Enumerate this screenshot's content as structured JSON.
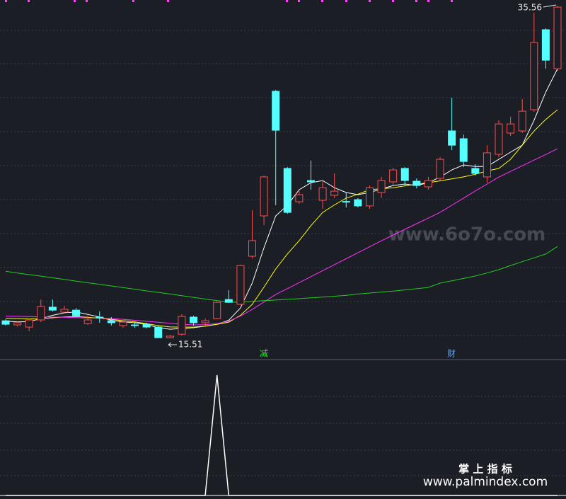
{
  "chart_data": [
    {
      "type": "candlestick",
      "ylim": [
        14.36,
        35.9
      ],
      "up_color": "#ff4d4d",
      "down_color": "#54ffff",
      "open": [
        16.57,
        16.32,
        16.19,
        16.62,
        17.39,
        17.09,
        17.21,
        16.4,
        16.79,
        16.57,
        16.28,
        16.32,
        16.36,
        16.19,
        15.55,
        15.76,
        16.79,
        16.45,
        16.7,
        17.85,
        17.56,
        20.46,
        22.89,
        30.4,
        25.75,
        23.74,
        25.02,
        23.83,
        24.13,
        23.76,
        23.87,
        23.49,
        24.3,
        24.94,
        25.75,
        24.98,
        24.64,
        25.15,
        28.01,
        27.54,
        25.75,
        25.24,
        26.6,
        27.88,
        28.01,
        29.29,
        34.11,
        31.76
      ],
      "high": [
        16.66,
        16.53,
        16.7,
        17.85,
        17.85,
        17.47,
        17.34,
        16.87,
        17.13,
        16.79,
        16.62,
        16.49,
        16.45,
        16.28,
        15.72,
        16.96,
        16.87,
        16.7,
        17.72,
        18.41,
        19.95,
        23.23,
        25.32,
        30.48,
        25.83,
        24.38,
        26.22,
        25.02,
        25.45,
        24.3,
        23.96,
        24.72,
        25.24,
        25.79,
        25.83,
        25.15,
        25.24,
        26.43,
        30.01,
        27.79,
        26.0,
        27.15,
        28.65,
        28.86,
        29.93,
        35.13,
        34.19,
        35.56
      ],
      "low": [
        16.28,
        16.23,
        15.94,
        16.49,
        17.13,
        17.0,
        16.79,
        16.32,
        16.45,
        16.28,
        16.15,
        16.15,
        16.11,
        15.55,
        15.51,
        15.68,
        16.28,
        16.28,
        16.66,
        17.64,
        17.51,
        20.33,
        22.33,
        23.53,
        23.02,
        23.61,
        24.47,
        23.32,
        23.96,
        23.4,
        23.4,
        23.32,
        23.96,
        24.72,
        24.72,
        24.55,
        24.47,
        25.02,
        26.86,
        25.83,
        25.32,
        24.89,
        26.43,
        27.71,
        27.88,
        29.16,
        31.76,
        31.63
      ],
      "close": [
        16.36,
        16.45,
        16.62,
        17.43,
        17.21,
        17.26,
        16.87,
        16.62,
        16.77,
        16.45,
        16.49,
        16.3,
        16.19,
        15.55,
        15.64,
        16.83,
        16.45,
        16.57,
        17.68,
        17.68,
        19.9,
        21.4,
        25.24,
        28.05,
        23.1,
        24.17,
        24.94,
        24.59,
        24.38,
        23.72,
        23.49,
        24.59,
        25.02,
        25.66,
        25.02,
        24.72,
        25.02,
        26.3,
        27.15,
        26.17,
        25.45,
        26.69,
        28.43,
        28.43,
        29.2,
        33.34,
        32.27,
        35.47
      ],
      "series": [
        {
          "color": "#ffffff",
          "values": [
            16.55,
            16.5,
            16.52,
            16.7,
            16.9,
            17.05,
            17.1,
            16.95,
            16.8,
            16.6,
            16.5,
            16.45,
            16.35,
            16.15,
            16.06,
            16.1,
            16.15,
            16.25,
            16.36,
            16.6,
            17.34,
            18.84,
            20.97,
            22.89,
            23.53,
            24.47,
            24.89,
            25.02,
            24.59,
            24.3,
            24.17,
            24.3,
            24.51,
            24.72,
            24.81,
            24.72,
            24.89,
            25.23,
            25.66,
            25.96,
            25.87,
            25.87,
            26.3,
            26.73,
            27.15,
            28.65,
            30.35,
            31.76
          ]
        },
        {
          "color": "#ffff00",
          "values": [
            16.72,
            16.7,
            16.68,
            16.7,
            16.75,
            16.8,
            16.82,
            16.78,
            16.72,
            16.66,
            16.58,
            16.5,
            16.4,
            16.28,
            16.2,
            16.19,
            16.19,
            16.25,
            16.35,
            16.49,
            16.9,
            17.56,
            18.6,
            19.69,
            20.6,
            21.4,
            22.3,
            23.1,
            23.55,
            23.96,
            24.2,
            24.47,
            24.53,
            24.59,
            24.7,
            24.8,
            24.89,
            25.0,
            25.12,
            25.24,
            25.4,
            25.6,
            25.75,
            26.3,
            27.15,
            28.0,
            28.7,
            29.29
          ]
        },
        {
          "color": "#ff33ff",
          "values": [
            16.85,
            16.84,
            16.82,
            16.8,
            16.79,
            16.78,
            16.76,
            16.74,
            16.72,
            16.7,
            16.66,
            16.6,
            16.54,
            16.48,
            16.42,
            16.36,
            16.32,
            16.34,
            16.4,
            16.55,
            16.85,
            17.25,
            17.7,
            18.15,
            18.51,
            18.87,
            19.23,
            19.59,
            19.95,
            20.31,
            20.67,
            21.03,
            21.39,
            21.74,
            22.08,
            22.42,
            22.76,
            23.1,
            23.53,
            23.96,
            24.39,
            24.81,
            25.23,
            25.57,
            25.91,
            26.25,
            26.59,
            26.94
          ]
        },
        {
          "color": "#22cc22",
          "values": [
            19.55,
            19.45,
            19.35,
            19.26,
            19.16,
            19.06,
            18.96,
            18.86,
            18.77,
            18.67,
            18.57,
            18.47,
            18.37,
            18.28,
            18.18,
            18.08,
            17.98,
            17.88,
            17.79,
            17.69,
            17.7,
            17.74,
            17.78,
            17.82,
            17.86,
            17.9,
            17.95,
            18.0,
            18.05,
            18.1,
            18.18,
            18.24,
            18.3,
            18.36,
            18.43,
            18.5,
            18.58,
            18.84,
            18.98,
            19.12,
            19.27,
            19.45,
            19.65,
            19.9,
            20.13,
            20.36,
            20.59,
            21.05
          ]
        }
      ],
      "annotations": [
        "减",
        "财"
      ]
    },
    {
      "type": "line",
      "color": "#ffffff",
      "ylim": [
        0,
        1
      ],
      "values": [
        0,
        0,
        0,
        0,
        0,
        0,
        0,
        0,
        0,
        0,
        0,
        0,
        0,
        0,
        0,
        0,
        0,
        0,
        1,
        0,
        0,
        0,
        0,
        0,
        0,
        0,
        0,
        0,
        0,
        0,
        0,
        0,
        0,
        0,
        0,
        0,
        0,
        0,
        0,
        0,
        0,
        0,
        0,
        0,
        0,
        0,
        0,
        0
      ]
    }
  ],
  "watermarks": [
    "www.6o7o.com",
    "掌 上 指 标",
    "www.palmindex.com"
  ]
}
